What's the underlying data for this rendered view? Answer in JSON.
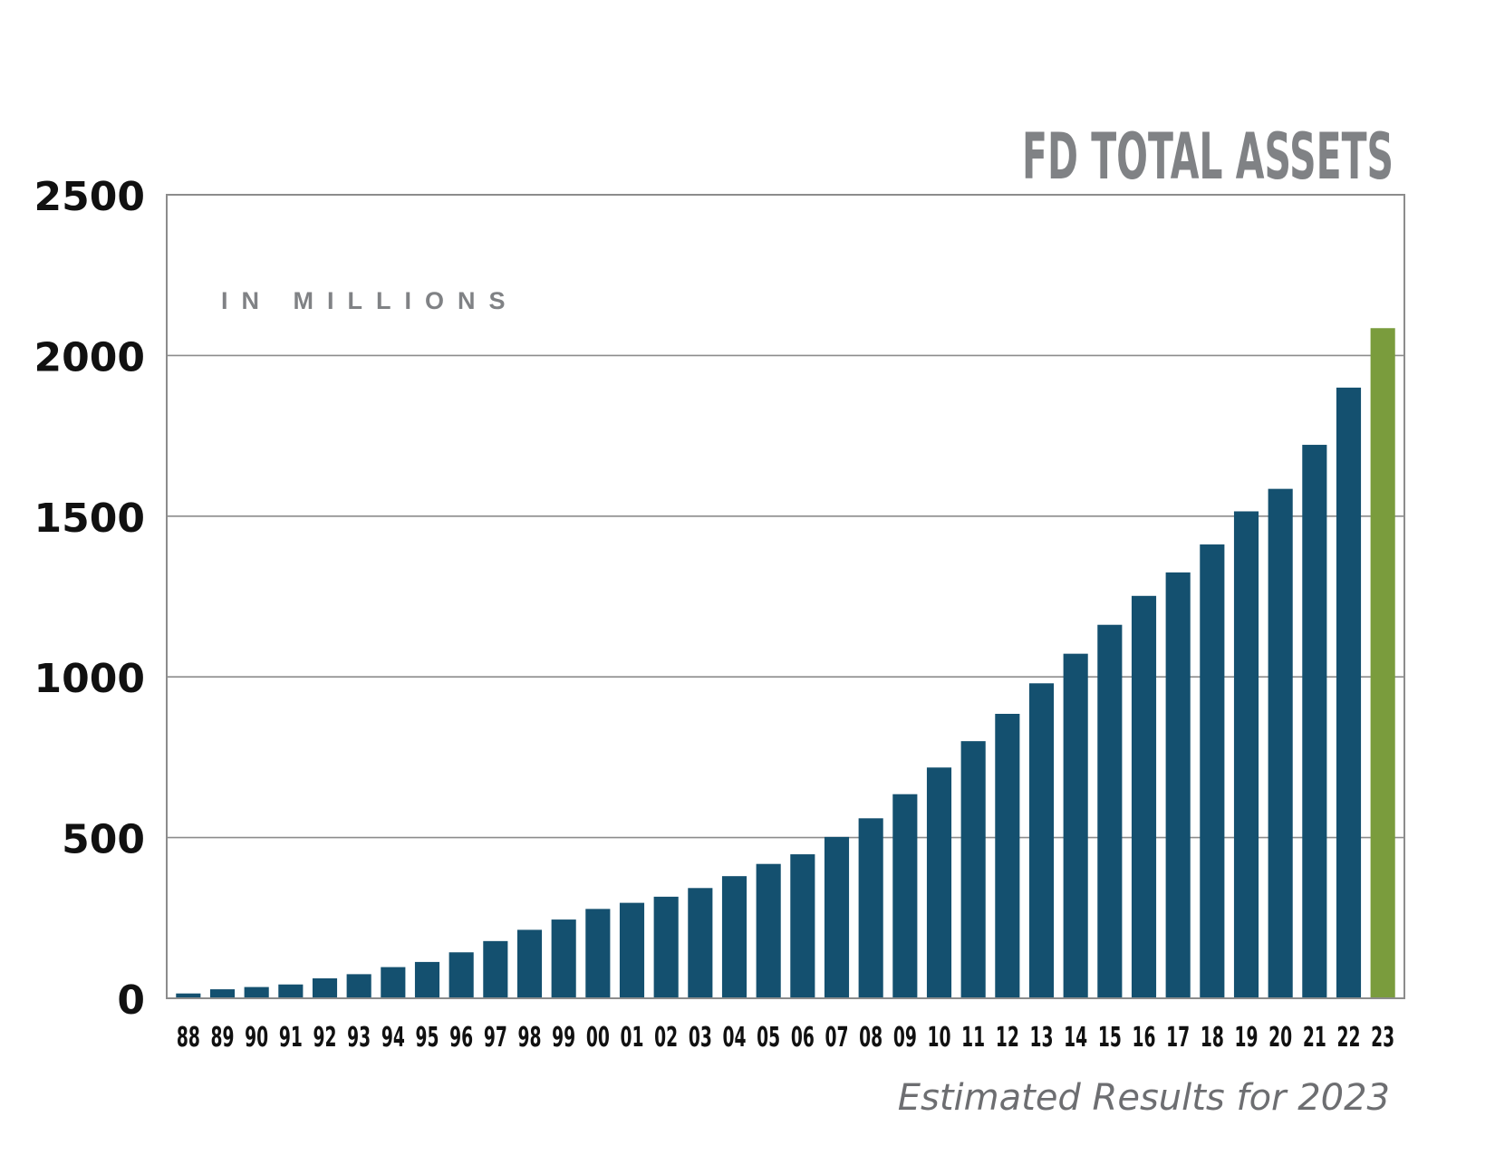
{
  "chart_data": {
    "type": "bar",
    "title": "FD TOTAL ASSETS",
    "subtitle": "IN MILLIONS",
    "footnote": "Estimated Results for 2023",
    "categories": [
      "88",
      "89",
      "90",
      "91",
      "92",
      "93",
      "94",
      "95",
      "96",
      "97",
      "98",
      "99",
      "00",
      "01",
      "02",
      "03",
      "04",
      "05",
      "06",
      "07",
      "08",
      "09",
      "10",
      "11",
      "12",
      "13",
      "14",
      "15",
      "16",
      "17",
      "18",
      "19",
      "20",
      "21",
      "22",
      "23"
    ],
    "values": [
      15,
      28,
      35,
      43,
      62,
      75,
      97,
      113,
      143,
      178,
      213,
      245,
      278,
      297,
      316,
      343,
      380,
      418,
      448,
      502,
      560,
      635,
      718,
      800,
      885,
      980,
      1072,
      1162,
      1252,
      1325,
      1412,
      1515,
      1585,
      1722,
      1900,
      2085
    ],
    "estimated_category": "23",
    "ylim": [
      0,
      2500
    ],
    "yticks": [
      0,
      500,
      1000,
      1500,
      2000,
      2500
    ],
    "grid": true,
    "colors": {
      "bar": "#14506F",
      "estimated_bar": "#7A9C3D",
      "title": "#808285",
      "subtitle": "#808285",
      "footnote": "#6D6E71",
      "grid": "#8C8C8C",
      "axis_text": "#111111"
    }
  }
}
